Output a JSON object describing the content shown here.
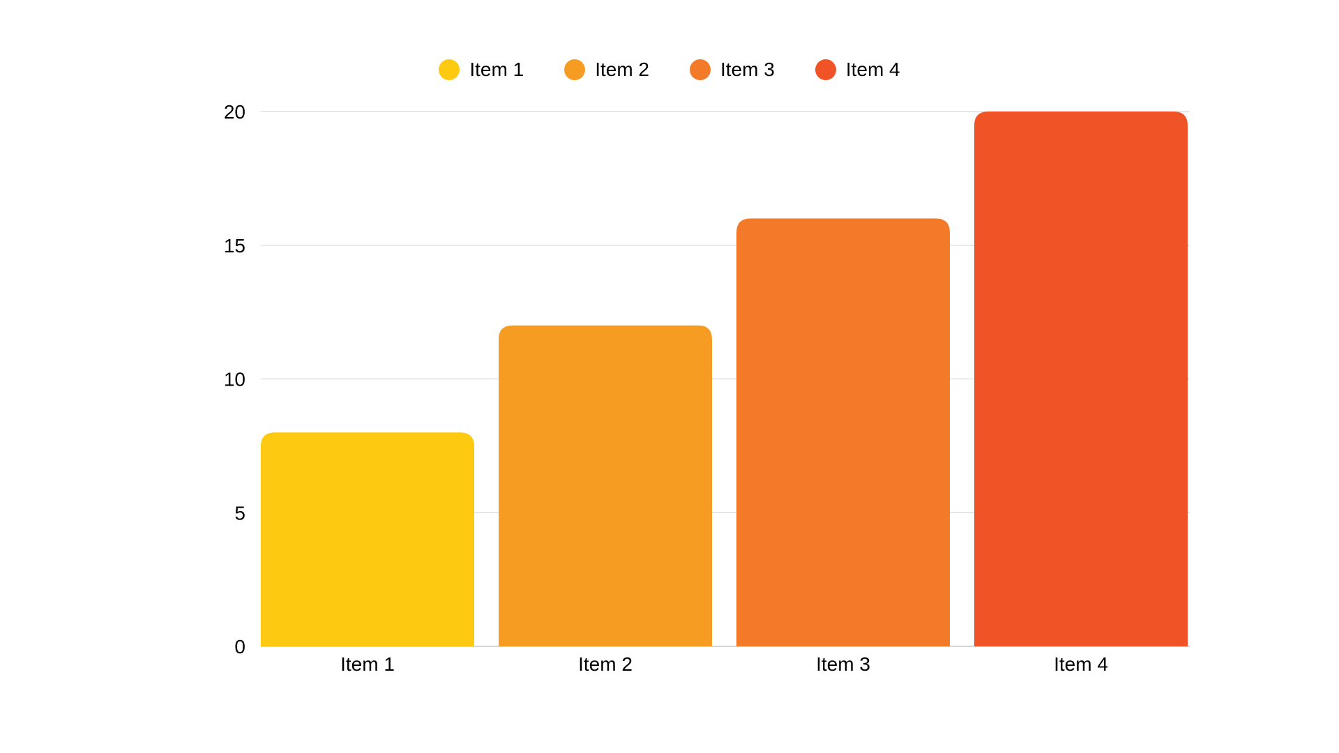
{
  "chart_data": {
    "type": "bar",
    "categories": [
      "Item 1",
      "Item 2",
      "Item 3",
      "Item 4"
    ],
    "values": [
      8,
      12,
      16,
      20
    ],
    "colors": [
      "#FECA11",
      "#F79C23",
      "#F27A28",
      "#EF5326"
    ],
    "title": "",
    "xlabel": "",
    "ylabel": "",
    "ylim": [
      0,
      20
    ],
    "yticks": [
      0,
      5,
      10,
      15,
      20
    ],
    "grid": true,
    "legend_position": "top-center",
    "legend": [
      "Item 1",
      "Item 2",
      "Item 3",
      "Item 4"
    ]
  }
}
